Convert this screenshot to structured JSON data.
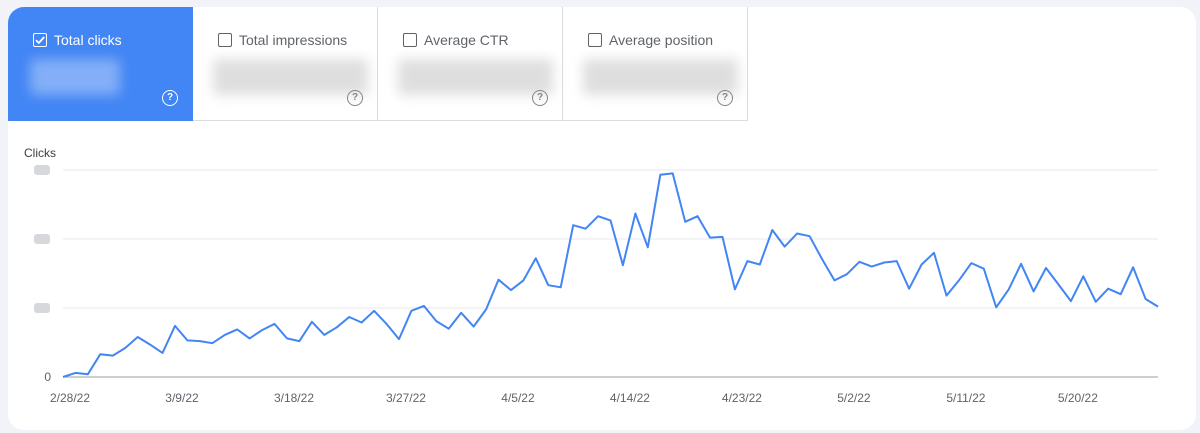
{
  "tiles": [
    {
      "label": "Total clicks",
      "active": true
    },
    {
      "label": "Total impressions",
      "active": false
    },
    {
      "label": "Average CTR",
      "active": false
    },
    {
      "label": "Average position",
      "active": false
    }
  ],
  "colors": {
    "accent": "#4285f4",
    "line": "#4285f4",
    "grid": "#e8eaed"
  },
  "chart_data": {
    "type": "line",
    "title": "Clicks",
    "xlabel": "",
    "ylabel": "",
    "ylim": [
      0,
      300
    ],
    "yticks": [
      0,
      100,
      200,
      300
    ],
    "ytick_labels": [
      "0",
      "",
      "",
      ""
    ],
    "x_tick_labels": [
      "2/28/22",
      "3/9/22",
      "3/18/22",
      "3/27/22",
      "4/5/22",
      "4/14/22",
      "4/23/22",
      "5/2/22",
      "5/11/22",
      "5/20/22"
    ],
    "x_tick_index": [
      0,
      9,
      18,
      27,
      36,
      45,
      54,
      63,
      72,
      81
    ],
    "grid": true,
    "series": [
      {
        "values": [
          0,
          6,
          4,
          33,
          31,
          42,
          58,
          47,
          35,
          74,
          53,
          52,
          49,
          61,
          69,
          56,
          68,
          77,
          56,
          52,
          80,
          61,
          72,
          87,
          79,
          96,
          77,
          55,
          96,
          103,
          81,
          70,
          93,
          73,
          98,
          141,
          126,
          140,
          172,
          133,
          130,
          220,
          215,
          233,
          227,
          162,
          237,
          188,
          293,
          295,
          225,
          233,
          202,
          203,
          127,
          168,
          163,
          213,
          189,
          208,
          204,
          171,
          140,
          149,
          167,
          160,
          166,
          168,
          128,
          163,
          180,
          118,
          140,
          165,
          157,
          101,
          127,
          164,
          124,
          158,
          134,
          110,
          146,
          109,
          128,
          120,
          159,
          113,
          102
        ]
      }
    ]
  }
}
